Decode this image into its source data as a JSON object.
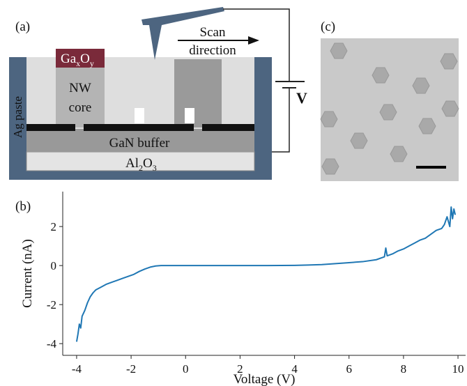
{
  "panels": {
    "a": "(a)",
    "b": "(b)",
    "c": "(c)"
  },
  "diagram": {
    "cap": [
      "Ga",
      "x",
      "O",
      "y"
    ],
    "core": [
      "NW",
      "core"
    ],
    "scan": [
      "Scan",
      "direction"
    ],
    "voltage": "V",
    "paste": "Ag paste",
    "buffer": "GaN buffer",
    "substrate": [
      "Al",
      "2",
      "O",
      "3"
    ]
  },
  "chart_data": {
    "type": "line",
    "xlabel": "Voltage (V)",
    "ylabel": "Current (nA)",
    "x": [
      -4.0,
      -3.95,
      -3.9,
      -3.85,
      -3.8,
      -3.7,
      -3.6,
      -3.5,
      -3.4,
      -3.3,
      -3.1,
      -2.9,
      -2.7,
      -2.5,
      -2.3,
      -2.1,
      -1.9,
      -1.7,
      -1.5,
      -1.3,
      -1.1,
      -0.9,
      0,
      1,
      2,
      3,
      4,
      4.5,
      5,
      5.5,
      6,
      6.5,
      7,
      7.3,
      7.35,
      7.4,
      7.6,
      7.8,
      8,
      8.2,
      8.4,
      8.6,
      8.8,
      9,
      9.2,
      9.4,
      9.5,
      9.6,
      9.7,
      9.75,
      9.8,
      9.85,
      9.9
    ],
    "series": [
      {
        "color": "#1f77b4",
        "values": [
          -3.9,
          -3.5,
          -3.0,
          -3.2,
          -2.6,
          -2.3,
          -1.9,
          -1.6,
          -1.4,
          -1.25,
          -1.1,
          -0.95,
          -0.85,
          -0.75,
          -0.65,
          -0.55,
          -0.45,
          -0.3,
          -0.18,
          -0.08,
          -0.02,
          0,
          0,
          0,
          0,
          0,
          0.01,
          0.03,
          0.05,
          0.1,
          0.15,
          0.2,
          0.3,
          0.45,
          0.9,
          0.5,
          0.6,
          0.75,
          0.85,
          1.0,
          1.15,
          1.3,
          1.4,
          1.6,
          1.8,
          1.9,
          2.1,
          2.5,
          2.0,
          3.0,
          2.4,
          2.9,
          2.6
        ]
      }
    ],
    "xlim": [
      -4.51,
      10.28
    ],
    "ylim": [
      -4.6,
      3.79
    ],
    "xticks": [
      -4,
      -2,
      0,
      2,
      4,
      6,
      8,
      10
    ],
    "yticks": [
      -4,
      -2,
      0,
      2
    ]
  }
}
